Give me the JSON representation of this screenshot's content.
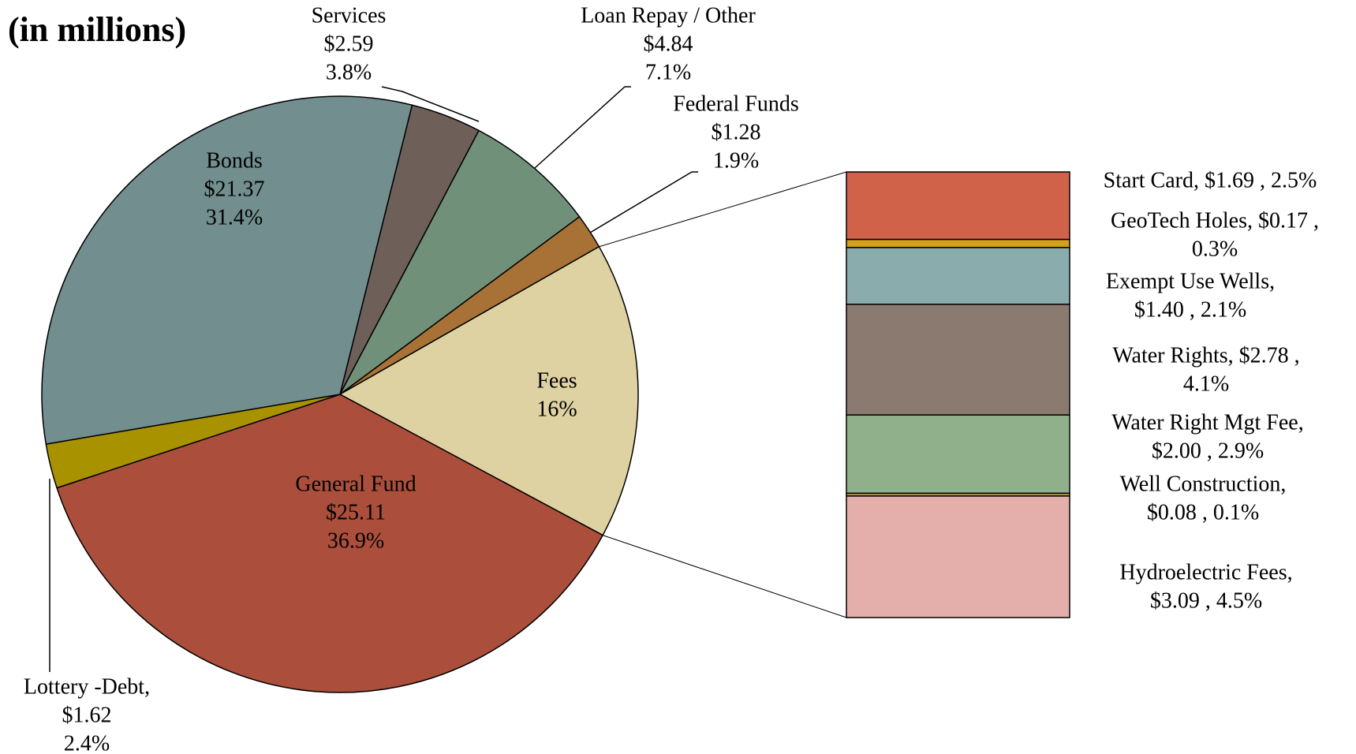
{
  "chart_data": [
    {
      "type": "pie",
      "title": "(in millions)",
      "categories": [
        "Services",
        "Loan Repay / Other",
        "Federal Funds",
        "Fees",
        "General Fund",
        "Lottery -Debt,",
        "Bonds"
      ],
      "labels": [
        [
          "$2.59",
          "3.8%"
        ],
        [
          "$4.84",
          "7.1%"
        ],
        [
          "$1.28",
          "1.9%"
        ],
        [
          "16%"
        ],
        [
          "$25.11",
          "36.9%"
        ],
        [
          "$1.62",
          "2.4%"
        ],
        [
          "$21.37",
          "31.4%"
        ]
      ],
      "values": [
        3.8,
        7.1,
        1.9,
        16,
        36.9,
        2.4,
        31.4
      ],
      "colors": [
        "#6e6058",
        "#71907a",
        "#a87136",
        "#dfd2a2",
        "#ab4f3c",
        "#a89200",
        "#728e8e"
      ]
    },
    {
      "type": "stacked-bar",
      "labels": [
        [
          "Start Card,  $1.69 , 2.5%"
        ],
        [
          "GeoTech Holes,  $0.17 ,",
          "0.3%"
        ],
        [
          "Exempt Use Wells,",
          "$1.40 , 2.1%"
        ],
        [
          "Water Rights,  $2.78 ,",
          "4.1%"
        ],
        [
          "Water Right Mgt Fee,",
          "$2.00 , 2.9%"
        ],
        [
          "Well Construction,",
          "$0.08 , 0.1%"
        ],
        [
          "Hydroelectric Fees,",
          "$3.09 , 4.5%"
        ]
      ],
      "values": [
        2.5,
        0.3,
        2.1,
        4.1,
        2.9,
        0.1,
        4.5
      ],
      "colors": [
        "#d1624a",
        "#d4a017",
        "#8aacac",
        "#8b7a6f",
        "#8fb08b",
        "#c8a060",
        "#e4aeaa"
      ]
    }
  ]
}
